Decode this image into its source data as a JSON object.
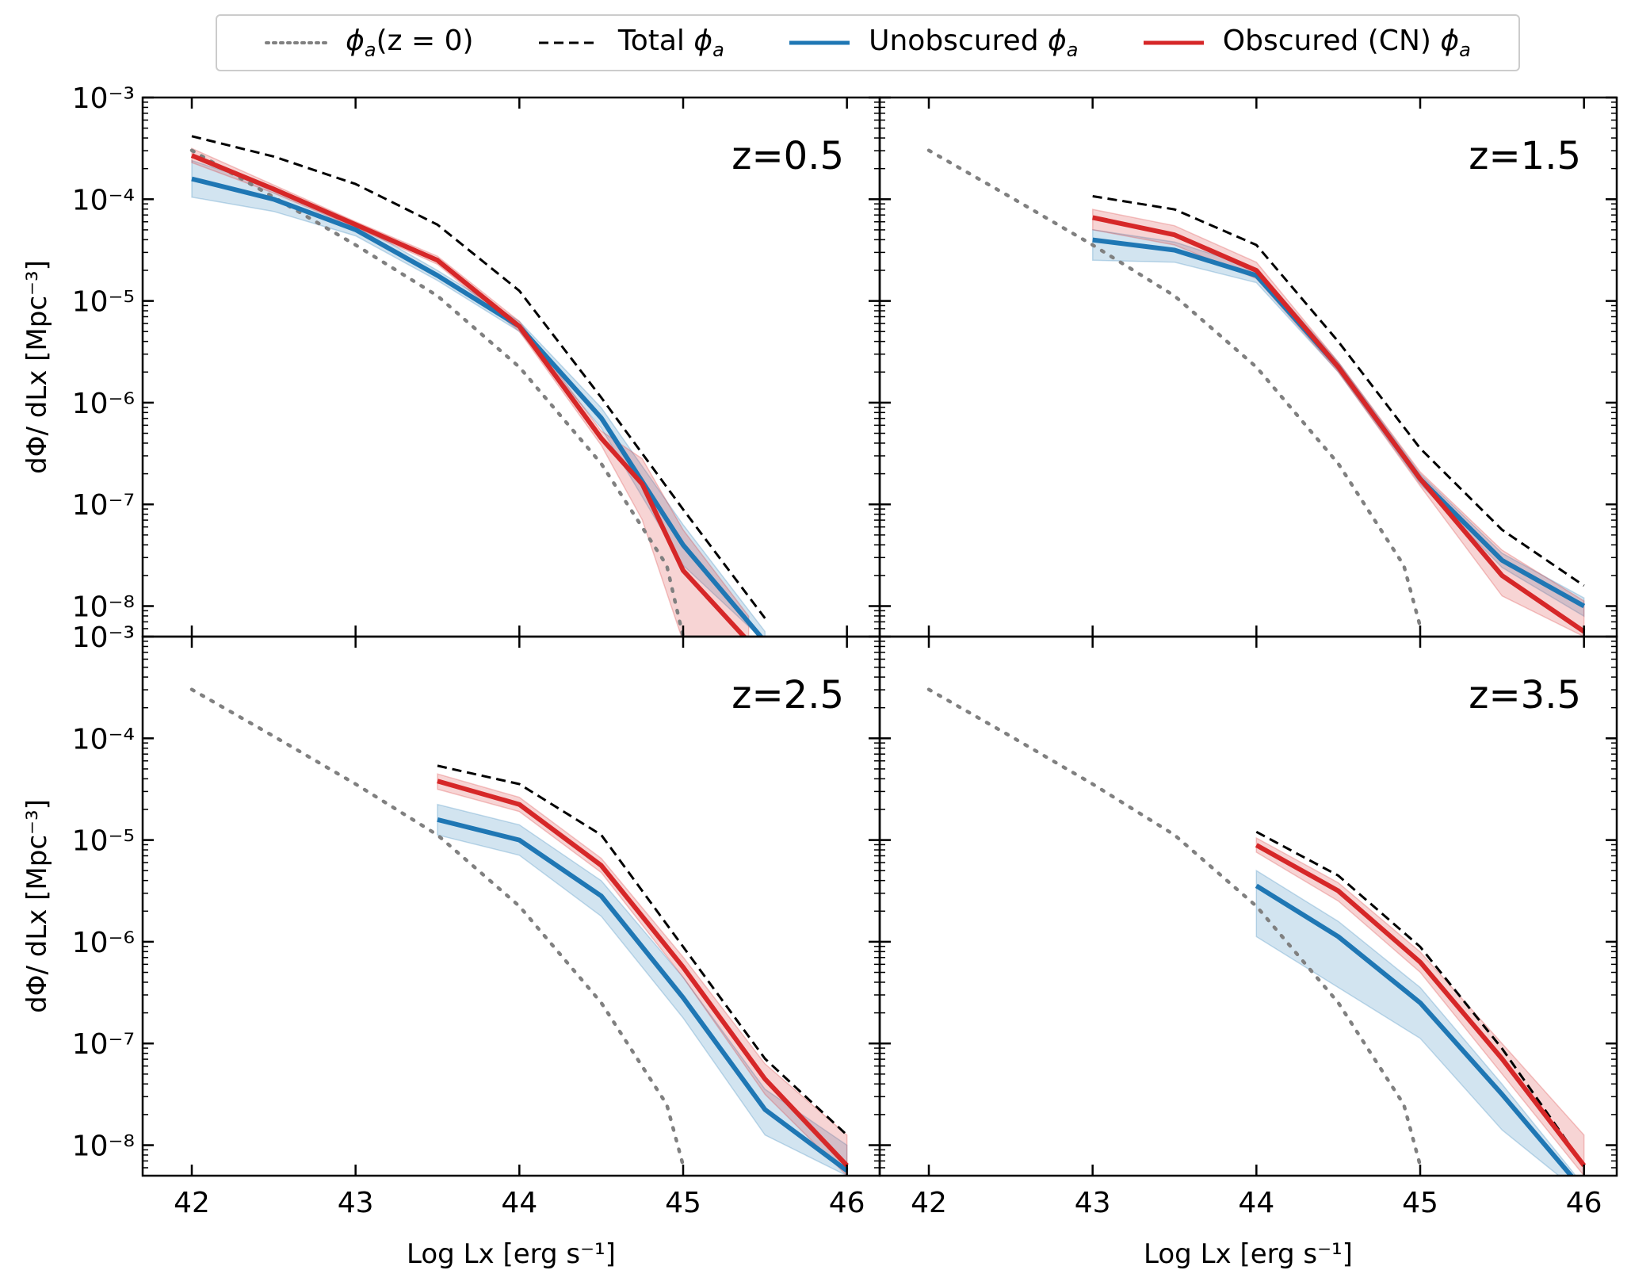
{
  "legend": {
    "entries": [
      {
        "key": "phi_z0",
        "label_sym": "ϕ",
        "label_sub": "a",
        "label_tail": "(z = 0)",
        "color": "#808080",
        "style": "dotted"
      },
      {
        "key": "total",
        "label_head": "Total ",
        "label_sym": "ϕ",
        "label_sub": "a",
        "color": "#000000",
        "style": "dashed"
      },
      {
        "key": "unobscured",
        "label_head": "Unobscured ",
        "label_sym": "ϕ",
        "label_sub": "a",
        "color": "#1f77b4",
        "style": "solid"
      },
      {
        "key": "obscured",
        "label_head": "Obscured (CN) ",
        "label_sym": "ϕ",
        "label_sub": "a",
        "color": "#d62728",
        "style": "solid"
      }
    ]
  },
  "axes": {
    "ylabel": "dΦ/ dLx [Mpc⁻³]",
    "xlabel": "Log Lx [erg s⁻¹]",
    "xticks": [
      "42",
      "43",
      "44",
      "45",
      "46"
    ],
    "yticks": [
      "10⁻³",
      "10⁻⁴",
      "10⁻⁵",
      "10⁻⁶",
      "10⁻⁷",
      "10⁻⁸"
    ]
  },
  "chart_data": [
    {
      "type": "line",
      "title": "z=0.5",
      "xlim": [
        41.7,
        46.2
      ],
      "ylim_log10": [
        -8.3,
        -3
      ],
      "series": [
        {
          "name": "ϕa(z=0)",
          "x": [
            42,
            42.5,
            43,
            43.5,
            44,
            44.5,
            44.9,
            45.0
          ],
          "y": [
            -3.52,
            -3.98,
            -4.45,
            -4.95,
            -5.65,
            -6.6,
            -7.6,
            -8.3
          ]
        },
        {
          "name": "Total ϕa",
          "x": [
            42,
            42.5,
            43,
            43.5,
            44,
            44.5,
            45,
            45.5
          ],
          "y": [
            -3.38,
            -3.58,
            -3.85,
            -4.25,
            -4.9,
            -5.95,
            -7.05,
            -8.12
          ]
        },
        {
          "name": "Unobscured ϕa",
          "x": [
            42,
            42.5,
            43,
            43.5,
            44,
            44.5,
            45,
            45.5
          ],
          "y": [
            -3.8,
            -4.0,
            -4.3,
            -4.75,
            -5.25,
            -6.15,
            -7.4,
            -8.35
          ],
          "lo": [
            -3.98,
            -4.12,
            -4.36,
            -4.8,
            -5.3,
            -6.25,
            -7.6,
            -8.35
          ],
          "hi": [
            -3.62,
            -3.88,
            -4.24,
            -4.7,
            -5.2,
            -6.05,
            -7.2,
            -8.25
          ]
        },
        {
          "name": "Obscured (CN) ϕa",
          "x": [
            42,
            42.5,
            43,
            43.5,
            44,
            44.5,
            44.75,
            45,
            45.4
          ],
          "y": [
            -3.57,
            -3.9,
            -4.25,
            -4.6,
            -5.25,
            -6.35,
            -6.8,
            -7.65,
            -8.35
          ],
          "lo": [
            -3.64,
            -3.94,
            -4.28,
            -4.64,
            -5.3,
            -6.42,
            -7.15,
            -8.35,
            -8.35
          ],
          "hi": [
            -3.5,
            -3.86,
            -4.22,
            -4.56,
            -5.2,
            -6.28,
            -6.55,
            -7.25,
            -8.1
          ]
        }
      ]
    },
    {
      "type": "line",
      "title": "z=1.5",
      "xlim": [
        41.7,
        46.2
      ],
      "ylim_log10": [
        -8.3,
        -3
      ],
      "series": [
        {
          "name": "ϕa(z=0)",
          "x": [
            42,
            42.5,
            43,
            43.5,
            44,
            44.5,
            44.9,
            45.0
          ],
          "y": [
            -3.52,
            -3.98,
            -4.45,
            -4.95,
            -5.65,
            -6.6,
            -7.6,
            -8.2
          ]
        },
        {
          "name": "Total ϕa",
          "x": [
            43,
            43.5,
            44,
            44.5,
            45,
            45.5,
            46
          ],
          "y": [
            -3.97,
            -4.1,
            -4.45,
            -5.4,
            -6.45,
            -7.25,
            -7.8
          ]
        },
        {
          "name": "Unobscured ϕa",
          "x": [
            43,
            43.5,
            44,
            44.5,
            45,
            45.5,
            46
          ],
          "y": [
            -4.4,
            -4.5,
            -4.75,
            -5.65,
            -6.75,
            -7.55,
            -8.0
          ],
          "lo": [
            -4.6,
            -4.62,
            -4.82,
            -5.7,
            -6.8,
            -7.62,
            -8.1
          ],
          "hi": [
            -4.3,
            -4.42,
            -4.68,
            -5.6,
            -6.7,
            -7.48,
            -7.92
          ]
        },
        {
          "name": "Obscured (CN) ϕa",
          "x": [
            43,
            43.5,
            44,
            44.5,
            45,
            45.5,
            46
          ],
          "y": [
            -4.18,
            -4.35,
            -4.7,
            -5.65,
            -6.75,
            -7.7,
            -8.25
          ],
          "lo": [
            -4.3,
            -4.45,
            -4.78,
            -5.7,
            -6.82,
            -7.9,
            -8.3
          ],
          "hi": [
            -4.1,
            -4.26,
            -4.62,
            -5.6,
            -6.68,
            -7.45,
            -7.95
          ]
        }
      ]
    },
    {
      "type": "line",
      "title": "z=2.5",
      "xlim": [
        41.7,
        46.2
      ],
      "ylim_log10": [
        -8.3,
        -3
      ],
      "series": [
        {
          "name": "ϕa(z=0)",
          "x": [
            42,
            42.5,
            43,
            43.5,
            44,
            44.5,
            44.9,
            45.0
          ],
          "y": [
            -3.52,
            -3.98,
            -4.45,
            -4.95,
            -5.65,
            -6.6,
            -7.6,
            -8.2
          ]
        },
        {
          "name": "Total ϕa",
          "x": [
            43.5,
            44,
            44.5,
            45,
            45.5,
            46
          ],
          "y": [
            -4.27,
            -4.45,
            -4.95,
            -6.05,
            -7.15,
            -7.9
          ]
        },
        {
          "name": "Unobscured ϕa",
          "x": [
            43.5,
            44,
            44.5,
            45,
            45.5,
            46
          ],
          "y": [
            -4.8,
            -5.0,
            -5.55,
            -6.55,
            -7.65,
            -8.25
          ],
          "lo": [
            -4.95,
            -5.15,
            -5.75,
            -6.75,
            -7.9,
            -8.3
          ],
          "hi": [
            -4.65,
            -4.85,
            -5.4,
            -6.35,
            -7.45,
            -8.0
          ]
        },
        {
          "name": "Obscured (CN) ϕa",
          "x": [
            43.5,
            44,
            44.5,
            45,
            45.5,
            46
          ],
          "y": [
            -4.42,
            -4.65,
            -5.25,
            -6.25,
            -7.35,
            -8.2
          ],
          "lo": [
            -4.5,
            -4.72,
            -5.32,
            -6.35,
            -7.5,
            -8.3
          ],
          "hi": [
            -4.35,
            -4.58,
            -5.18,
            -6.15,
            -7.2,
            -7.9
          ]
        }
      ]
    },
    {
      "type": "line",
      "title": "z=3.5",
      "xlim": [
        41.7,
        46.2
      ],
      "ylim_log10": [
        -8.3,
        -3
      ],
      "series": [
        {
          "name": "ϕa(z=0)",
          "x": [
            42,
            42.5,
            43,
            43.5,
            44,
            44.5,
            44.9,
            45.0
          ],
          "y": [
            -3.52,
            -3.98,
            -4.45,
            -4.95,
            -5.65,
            -6.6,
            -7.6,
            -8.2
          ]
        },
        {
          "name": "Total ϕa",
          "x": [
            44,
            44.5,
            45,
            45.5,
            46
          ],
          "y": [
            -4.92,
            -5.35,
            -6.05,
            -7.05,
            -8.2
          ]
        },
        {
          "name": "Unobscured ϕa",
          "x": [
            44,
            44.5,
            45,
            45.5,
            46
          ],
          "y": [
            -5.45,
            -5.95,
            -6.6,
            -7.5,
            -8.45
          ],
          "lo": [
            -5.95,
            -6.45,
            -6.95,
            -7.85,
            -8.5
          ],
          "hi": [
            -5.3,
            -5.8,
            -6.45,
            -7.4,
            -8.4
          ]
        },
        {
          "name": "Obscured (CN) ϕa",
          "x": [
            44,
            44.5,
            45,
            45.5,
            46
          ],
          "y": [
            -5.05,
            -5.5,
            -6.2,
            -7.15,
            -8.2
          ],
          "lo": [
            -5.12,
            -5.6,
            -6.3,
            -7.3,
            -8.3
          ],
          "hi": [
            -4.98,
            -5.42,
            -6.1,
            -7.0,
            -7.9
          ]
        }
      ]
    }
  ]
}
